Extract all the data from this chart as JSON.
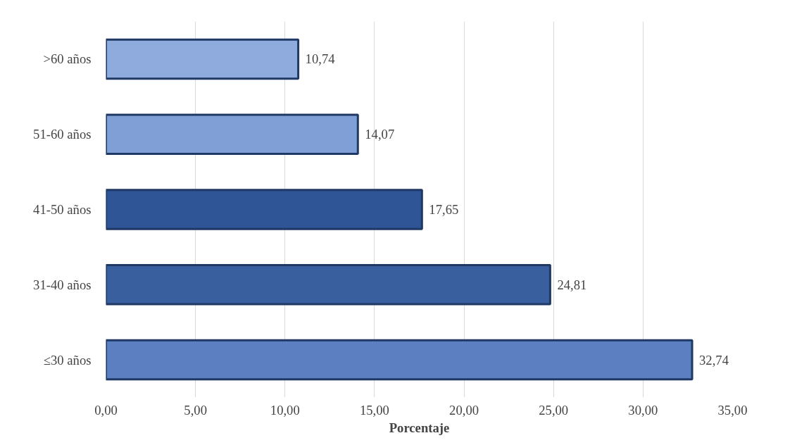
{
  "chart_data": {
    "type": "bar",
    "orientation": "horizontal",
    "xlabel": "Porcentaje",
    "categories": [
      ">60 años",
      "51-60 años",
      "41-50 años",
      "31-40 años",
      "≤30 años"
    ],
    "values": [
      10.74,
      14.07,
      17.65,
      24.81,
      32.74
    ],
    "colors": [
      "#8faadc",
      "#7f9fd6",
      "#2f5597",
      "#3a5f9e",
      "#5b7fc0"
    ],
    "value_labels": [
      "10,74",
      "14,07",
      "17,65",
      "24,81",
      "32,74"
    ],
    "xlim": [
      0,
      35
    ],
    "xticks": [
      {
        "value": 0,
        "label": "0,00"
      },
      {
        "value": 5,
        "label": "5,00"
      },
      {
        "value": 10,
        "label": "10,00"
      },
      {
        "value": 15,
        "label": "15,00"
      },
      {
        "value": 20,
        "label": "20,00"
      },
      {
        "value": 25,
        "label": "25,00"
      },
      {
        "value": 30,
        "label": "30,00"
      },
      {
        "value": 35,
        "label": "35,00"
      }
    ],
    "grid": "x"
  }
}
